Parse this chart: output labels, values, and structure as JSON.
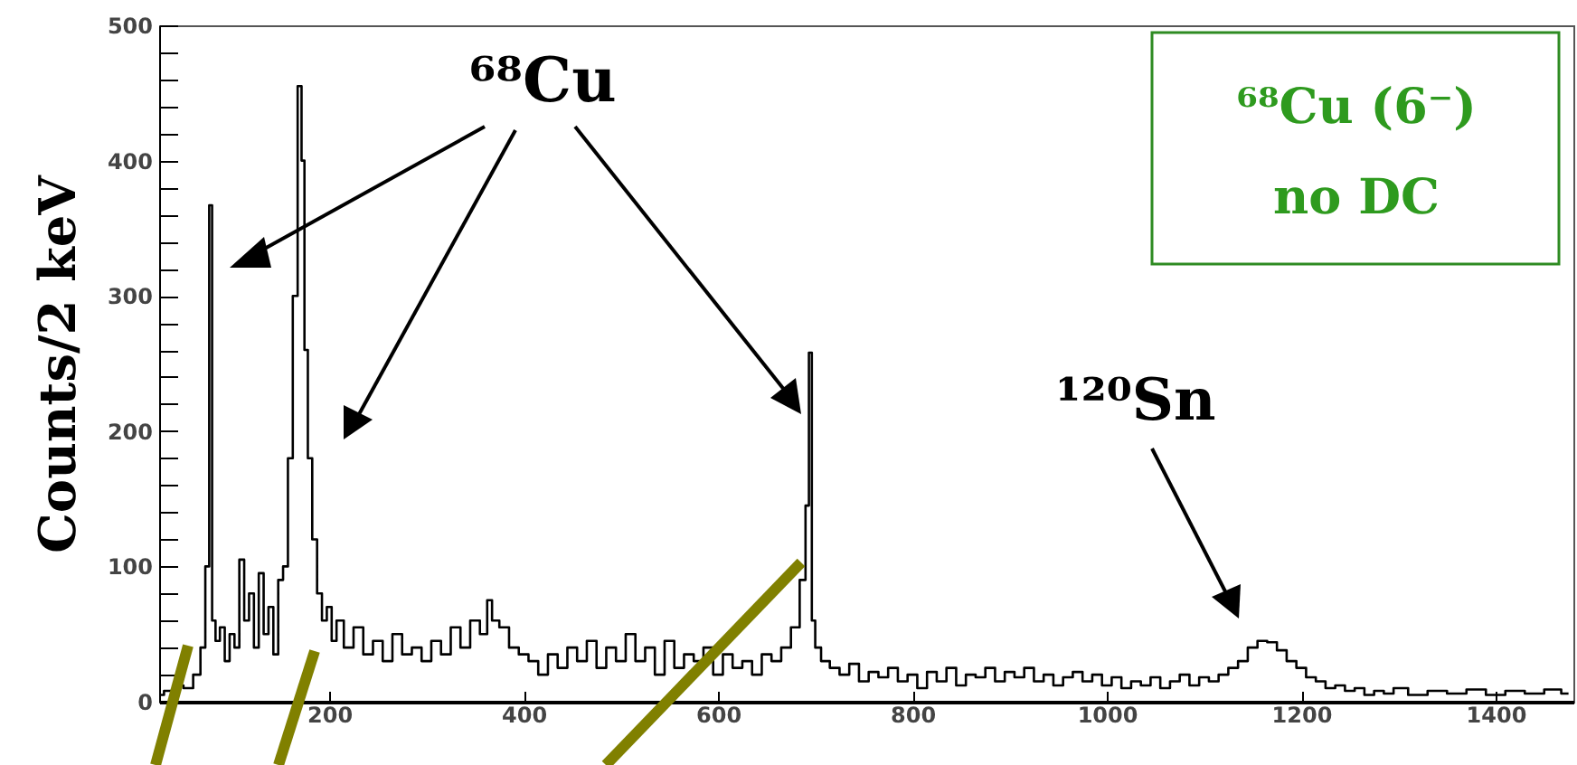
{
  "chart_data": {
    "type": "step",
    "ylabel": "Counts/2 keV",
    "x": [
      25,
      35,
      45,
      55,
      65,
      70,
      75,
      78,
      81,
      85,
      90,
      95,
      100,
      105,
      110,
      115,
      120,
      125,
      130,
      135,
      140,
      145,
      150,
      155,
      160,
      165,
      170,
      173,
      176,
      180,
      185,
      190,
      195,
      200,
      205,
      210,
      220,
      230,
      240,
      250,
      260,
      270,
      280,
      290,
      300,
      310,
      320,
      330,
      340,
      350,
      360,
      365,
      370,
      380,
      390,
      400,
      410,
      420,
      430,
      440,
      450,
      460,
      470,
      480,
      490,
      500,
      510,
      520,
      530,
      540,
      550,
      560,
      570,
      580,
      590,
      600,
      610,
      620,
      630,
      640,
      650,
      660,
      670,
      680,
      688,
      692,
      695,
      698,
      702,
      710,
      720,
      730,
      740,
      750,
      760,
      770,
      780,
      790,
      800,
      810,
      820,
      830,
      840,
      850,
      860,
      870,
      880,
      890,
      900,
      910,
      920,
      930,
      940,
      950,
      960,
      970,
      980,
      990,
      1000,
      1010,
      1020,
      1030,
      1040,
      1050,
      1060,
      1070,
      1080,
      1090,
      1100,
      1110,
      1120,
      1130,
      1140,
      1150,
      1160,
      1170,
      1180,
      1190,
      1200,
      1210,
      1220,
      1230,
      1240,
      1250,
      1260,
      1270,
      1280,
      1290,
      1300,
      1320,
      1340,
      1360,
      1380,
      1400,
      1420,
      1440,
      1460,
      1475
    ],
    "series": [
      {
        "color": "#000000",
        "values": [
          5,
          8,
          12,
          10,
          20,
          40,
          100,
          367,
          60,
          45,
          55,
          30,
          50,
          40,
          105,
          60,
          80,
          40,
          95,
          50,
          70,
          35,
          90,
          100,
          180,
          300,
          455,
          400,
          260,
          180,
          120,
          80,
          60,
          70,
          45,
          60,
          40,
          55,
          35,
          45,
          30,
          50,
          35,
          40,
          30,
          45,
          35,
          55,
          40,
          60,
          50,
          75,
          60,
          55,
          40,
          35,
          30,
          20,
          35,
          25,
          40,
          30,
          45,
          25,
          40,
          30,
          50,
          30,
          40,
          20,
          45,
          25,
          35,
          30,
          40,
          20,
          35,
          25,
          30,
          20,
          35,
          30,
          40,
          55,
          90,
          145,
          258,
          60,
          40,
          30,
          25,
          20,
          28,
          15,
          22,
          18,
          25,
          15,
          20,
          10,
          22,
          15,
          25,
          12,
          20,
          18,
          25,
          15,
          22,
          18,
          25,
          15,
          20,
          12,
          18,
          22,
          15,
          20,
          12,
          18,
          10,
          15,
          12,
          18,
          10,
          15,
          20,
          12,
          18,
          15,
          20,
          25,
          30,
          40,
          45,
          44,
          38,
          30,
          25,
          18,
          15,
          10,
          12,
          8,
          10,
          5,
          8,
          6,
          10,
          5,
          8,
          6,
          9,
          5,
          8,
          6,
          9,
          6
        ]
      }
    ],
    "xlim": [
      25,
      1480
    ],
    "xticks": [
      200,
      400,
      600,
      800,
      1000,
      1200,
      1400
    ],
    "ylim": [
      0,
      500
    ],
    "yticks": [
      0,
      {
        "value": 20,
        "label": null
      },
      {
        "value": 40,
        "label": null
      },
      {
        "value": 60,
        "label": null
      },
      {
        "value": 80,
        "label": null
      },
      100,
      {
        "value": 120,
        "label": null
      },
      {
        "value": 140,
        "label": null
      },
      {
        "value": 160,
        "label": null
      },
      {
        "value": 180,
        "label": null
      },
      200,
      {
        "value": 220,
        "label": null
      },
      {
        "value": 240,
        "label": null
      },
      {
        "value": 260,
        "label": null
      },
      {
        "value": 280,
        "label": null
      },
      300,
      {
        "value": 320,
        "label": null
      },
      {
        "value": 340,
        "label": null
      },
      {
        "value": 360,
        "label": null
      },
      {
        "value": 380,
        "label": null
      },
      400,
      {
        "value": 420,
        "label": null
      },
      {
        "value": 440,
        "label": null
      },
      {
        "value": 460,
        "label": null
      },
      {
        "value": 480,
        "label": null
      },
      500
    ],
    "grid": false,
    "annotations": [
      "⁶⁸Cu",
      "¹²⁰Sn",
      "⁶⁸Cu (6⁻)",
      "no DC"
    ]
  }
}
